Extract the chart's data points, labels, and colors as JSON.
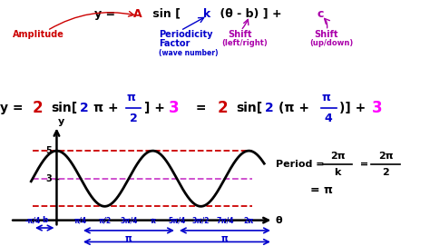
{
  "bg_color": "#ffffff",
  "curve_color": "#000000",
  "dashed_top_color": "#cc0000",
  "dashed_mid_color": "#cc44cc",
  "dashed_bot_color": "#cc0000",
  "blue_color": "#0000cc",
  "red_color": "#cc0000",
  "purple_color": "#aa00aa",
  "magenta_color": "#ff00ff",
  "green_color": "#008800",
  "amplitude": 2,
  "vertical_shift": 3,
  "k": 2,
  "tick_labels": [
    "-π/4",
    "π/4",
    "π/2",
    "3π/4",
    "π",
    "5π/4",
    "3π/2",
    "7π/4",
    "2π"
  ],
  "tick_positions": [
    -0.7854,
    0.7854,
    1.5708,
    2.3562,
    3.1416,
    3.927,
    4.7124,
    5.4978,
    6.2832
  ],
  "pi": 3.14159265358979
}
